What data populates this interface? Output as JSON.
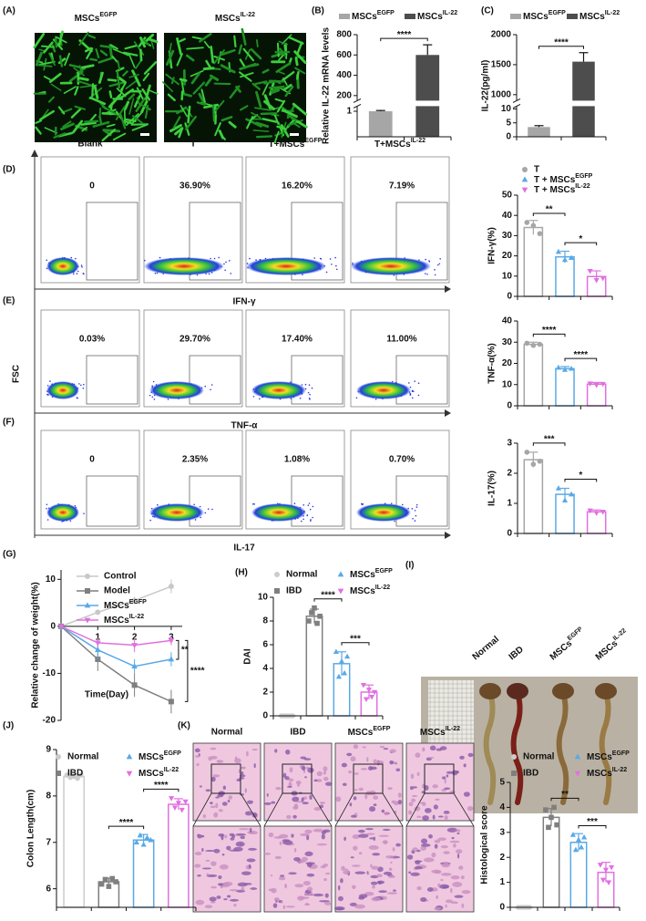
{
  "panel_labels": [
    "(A)",
    "(B)",
    "(C)",
    "(D)",
    "(E)",
    "(F)",
    "(G)",
    "(H)",
    "(I)",
    "(J)",
    "(K)"
  ],
  "panel_a": {
    "labels": [
      {
        "text": "MSCs",
        "sup": "EGFP"
      },
      {
        "text": "MSCs",
        "sup": "IL-22"
      }
    ]
  },
  "flow": {
    "y_label": "FSC",
    "columns": [
      "Blank",
      "T",
      {
        "text": "T+MSCs",
        "sup": "EGFP"
      },
      {
        "text": "T+MSCs",
        "sup": "IL-22"
      }
    ],
    "rows": [
      {
        "marker": "IFN-γ",
        "gates": [
          "0",
          "36.90%",
          "16.20%",
          "7.19%"
        ]
      },
      {
        "marker": "TNF-α",
        "gates": [
          "0.03%",
          "29.70%",
          "17.40%",
          "11.00%"
        ]
      },
      {
        "marker": "IL-17",
        "gates": [
          "0",
          "2.35%",
          "1.08%",
          "0.70%"
        ]
      }
    ]
  },
  "panel_i": {
    "labels": [
      "Normal",
      "IBD",
      {
        "text": "MSCs",
        "sup": "EGFP"
      },
      {
        "text": "MSCs",
        "sup": "IL-22"
      }
    ]
  },
  "panel_k_images": {
    "labels": [
      "Normal",
      "IBD",
      {
        "text": "MSCs",
        "sup": "EGFP"
      },
      {
        "text": "MSCs",
        "sup": "IL-22"
      }
    ]
  },
  "chart_data": [
    {
      "type": "bar",
      "y_label": "Relative IL-22 mRNA levels",
      "legend": true,
      "ylim": [
        0,
        800
      ],
      "ybreak": [
        1.2,
        150
      ],
      "yticks": [
        1,
        200,
        400,
        600,
        800
      ],
      "series": [
        {
          "name": {
            "text": "MSCs",
            "sup": "EGFP"
          },
          "color": "#a6a6a6",
          "values": [
            1
          ],
          "errors": [
            0.03
          ]
        },
        {
          "name": {
            "text": "MSCs",
            "sup": "IL-22"
          },
          "color": "#4d4d4d",
          "values": [
            600
          ],
          "errors": [
            100
          ]
        }
      ],
      "annotations": [
        {
          "text": "****",
          "span": [
            0,
            1
          ]
        }
      ]
    },
    {
      "type": "bar",
      "y_label": "IL-22(pg/ml)",
      "legend": true,
      "ylim": [
        0,
        2000
      ],
      "ybreak": [
        11,
        900
      ],
      "yticks": [
        0,
        5,
        10,
        1000,
        1500,
        2000
      ],
      "series": [
        {
          "name": {
            "text": "MSCs",
            "sup": "EGFP"
          },
          "color": "#a6a6a6",
          "values": [
            3.5
          ],
          "errors": [
            0.5
          ]
        },
        {
          "name": {
            "text": "MSCs",
            "sup": "IL-22"
          },
          "color": "#4d4d4d",
          "values": [
            1550
          ],
          "errors": [
            150
          ]
        }
      ],
      "annotations": [
        {
          "text": "****",
          "span": [
            0,
            1
          ]
        }
      ]
    },
    {
      "type": "bar",
      "bars": "outline",
      "y_label": "IFN-γ(%)",
      "legend": true,
      "ylim": [
        0,
        50
      ],
      "yticks": [
        0,
        10,
        20,
        30,
        40,
        50
      ],
      "series": [
        {
          "name": "T",
          "color": "#a6a6a6",
          "marker": "circle",
          "values": [
            34
          ],
          "errors": [
            3.5
          ],
          "points": [
            36.5,
            35,
            31
          ]
        },
        {
          "name": {
            "text": "T + MSCs",
            "sup": "EGFP"
          },
          "color": "#5aa9e6",
          "marker": "triangle",
          "values": [
            19.5
          ],
          "errors": [
            2.8
          ],
          "points": [
            22,
            18,
            19
          ]
        },
        {
          "name": {
            "text": "T + MSCs",
            "sup": "IL-22"
          },
          "color": "#e070e0",
          "marker": "triangle-down",
          "values": [
            9.8
          ],
          "errors": [
            2.8
          ],
          "points": [
            12.5,
            8,
            9
          ]
        }
      ],
      "annotations": [
        {
          "text": "**",
          "span": [
            0,
            1
          ]
        },
        {
          "text": "*",
          "span": [
            1,
            2
          ]
        }
      ]
    },
    {
      "type": "bar",
      "bars": "outline",
      "y_label": "TNF-α(%)",
      "ylim": [
        0,
        40
      ],
      "yticks": [
        0,
        10,
        20,
        30,
        40
      ],
      "series": [
        {
          "color": "#a6a6a6",
          "marker": "circle",
          "values": [
            29
          ],
          "errors": [
            1
          ],
          "points": [
            29.5,
            28.5,
            29
          ]
        },
        {
          "color": "#5aa9e6",
          "marker": "triangle",
          "values": [
            17.5
          ],
          "errors": [
            1
          ],
          "points": [
            18,
            17,
            17.5
          ]
        },
        {
          "color": "#e070e0",
          "marker": "triangle-down",
          "values": [
            10.2
          ],
          "errors": [
            0.8
          ],
          "points": [
            10.5,
            9.8,
            10.3
          ]
        }
      ],
      "annotations": [
        {
          "text": "****",
          "span": [
            0,
            1
          ]
        },
        {
          "text": "****",
          "span": [
            1,
            2
          ]
        }
      ]
    },
    {
      "type": "bar",
      "bars": "outline",
      "y_label": "IL-17(%)",
      "ylim": [
        0,
        3
      ],
      "yticks": [
        0,
        1,
        2,
        3
      ],
      "series": [
        {
          "color": "#a6a6a6",
          "marker": "circle",
          "values": [
            2.45
          ],
          "errors": [
            0.25
          ],
          "points": [
            2.7,
            2.3,
            2.4
          ]
        },
        {
          "color": "#5aa9e6",
          "marker": "triangle",
          "values": [
            1.3
          ],
          "errors": [
            0.2
          ],
          "points": [
            1.5,
            1.1,
            1.3
          ]
        },
        {
          "color": "#e070e0",
          "marker": "triangle-down",
          "values": [
            0.72
          ],
          "errors": [
            0.06
          ],
          "points": [
            0.76,
            0.68,
            0.72
          ]
        }
      ],
      "annotations": [
        {
          "text": "***",
          "span": [
            0,
            1
          ]
        },
        {
          "text": "*",
          "span": [
            1,
            2
          ]
        }
      ]
    },
    {
      "type": "line",
      "x_label": "Time(Day)",
      "y_label": "Relative change of weight(%)",
      "legend": true,
      "x": [
        0,
        1,
        2,
        3
      ],
      "xlim": [
        0,
        3.3
      ],
      "xticks": [
        1,
        2,
        3
      ],
      "ylim": [
        -20,
        12
      ],
      "yticks": [
        -20,
        -10,
        0,
        10
      ],
      "series": [
        {
          "name": "Control",
          "color": "#c8c8c8",
          "marker": "circle",
          "values": [
            0,
            3,
            5.5,
            8.5
          ],
          "errors": [
            0,
            0.5,
            0.8,
            1.5
          ]
        },
        {
          "name": "Model",
          "color": "#7f7f7f",
          "marker": "square",
          "values": [
            0,
            -7,
            -12.5,
            -16
          ],
          "errors": [
            0,
            2.5,
            2.5,
            2.5
          ]
        },
        {
          "name": {
            "text": "MSCs",
            "sup": "EGFP"
          },
          "color": "#5aa9e6",
          "marker": "triangle",
          "values": [
            0,
            -5,
            -8.5,
            -7
          ],
          "errors": [
            0,
            2,
            1.5,
            1.5
          ]
        },
        {
          "name": {
            "text": "MSCs",
            "sup": "IL-22"
          },
          "color": "#e070e0",
          "marker": "triangle-down",
          "values": [
            0,
            -3.5,
            -4,
            -3
          ],
          "errors": [
            0,
            1,
            1.5,
            1
          ]
        }
      ],
      "annotations": [
        {
          "text": "**",
          "series": [
            3,
            2
          ]
        },
        {
          "text": "****",
          "series": [
            3,
            1
          ]
        }
      ]
    },
    {
      "type": "bar",
      "bars": "outline",
      "y_label": "DAI",
      "legend": true,
      "ylim": [
        0,
        10
      ],
      "yticks": [
        0,
        2,
        4,
        6,
        8,
        10
      ],
      "series": [
        {
          "name": "Normal",
          "color": "#cccccc",
          "marker": "circle",
          "values": [
            0
          ],
          "errors": [
            0.05
          ],
          "points": [
            0,
            0,
            0,
            0,
            0
          ]
        },
        {
          "name": "IBD",
          "color": "#7f7f7f",
          "marker": "square",
          "values": [
            8.4
          ],
          "errors": [
            0.6
          ],
          "points": [
            8,
            8.7,
            9.1,
            7.8,
            8.4
          ]
        },
        {
          "name": {
            "text": "MSCs",
            "sup": "EGFP"
          },
          "color": "#5aa9e6",
          "marker": "triangle",
          "values": [
            4.4
          ],
          "errors": [
            1
          ],
          "points": [
            5.4,
            3.3,
            4.6,
            3.6,
            5
          ]
        },
        {
          "name": {
            "text": "MSCs",
            "sup": "IL-22"
          },
          "color": "#e070e0",
          "marker": "triangle-down",
          "values": [
            2
          ],
          "errors": [
            0.6
          ],
          "points": [
            2.6,
            1.4,
            2.2,
            1.6,
            2
          ]
        }
      ],
      "annotations": [
        {
          "text": "****",
          "span": [
            1,
            2
          ]
        },
        {
          "text": "***",
          "span": [
            2,
            3
          ]
        }
      ]
    },
    {
      "type": "bar",
      "bars": "outline",
      "y_label": "Colon Length(cm)",
      "legend": true,
      "ylim": [
        5.6,
        9
      ],
      "yticks": [
        6,
        7,
        8,
        9
      ],
      "series": [
        {
          "name": "Normal",
          "color": "#cccccc",
          "marker": "circle",
          "values": [
            8.42
          ],
          "errors": [
            0.05
          ],
          "points": [
            8.45,
            8.4,
            8.42,
            8.38,
            8.45
          ]
        },
        {
          "name": "IBD",
          "color": "#7f7f7f",
          "marker": "square",
          "values": [
            6.15
          ],
          "errors": [
            0.08
          ],
          "points": [
            6.1,
            6.2,
            6.05,
            6.22,
            6.15
          ]
        },
        {
          "name": {
            "text": "MSCs",
            "sup": "EGFP"
          },
          "color": "#5aa9e6",
          "marker": "triangle",
          "values": [
            7.05
          ],
          "errors": [
            0.12
          ],
          "points": [
            7,
            7.15,
            6.95,
            7.1,
            7.05
          ]
        },
        {
          "name": {
            "text": "MSCs",
            "sup": "IL-22"
          },
          "color": "#e070e0",
          "marker": "triangle-down",
          "values": [
            7.82
          ],
          "errors": [
            0.12
          ],
          "points": [
            7.95,
            7.75,
            7.85,
            7.7,
            7.88
          ]
        }
      ],
      "annotations": [
        {
          "text": "****",
          "span": [
            1,
            2
          ]
        },
        {
          "text": "****",
          "span": [
            2,
            3
          ]
        }
      ]
    },
    {
      "type": "bar",
      "bars": "outline",
      "y_label": "Histological score",
      "legend": true,
      "ylim": [
        0,
        5
      ],
      "yticks": [
        0,
        1,
        2,
        3,
        4,
        5
      ],
      "series": [
        {
          "name": "Normal",
          "color": "#cccccc",
          "marker": "circle",
          "values": [
            0
          ],
          "errors": [
            0.05
          ],
          "points": [
            0,
            0,
            0,
            0,
            0
          ]
        },
        {
          "name": "IBD",
          "color": "#7f7f7f",
          "marker": "square",
          "values": [
            3.6
          ],
          "errors": [
            0.35
          ],
          "points": [
            3.9,
            3.2,
            3.6,
            4,
            3.3
          ]
        },
        {
          "name": {
            "text": "MSCs",
            "sup": "EGFP"
          },
          "color": "#5aa9e6",
          "marker": "triangle",
          "values": [
            2.6
          ],
          "errors": [
            0.35
          ],
          "points": [
            2.9,
            2.3,
            2.7,
            2.4,
            2.8
          ]
        },
        {
          "name": {
            "text": "MSCs",
            "sup": "IL-22"
          },
          "color": "#e070e0",
          "marker": "triangle-down",
          "values": [
            1.4
          ],
          "errors": [
            0.4
          ],
          "points": [
            1.7,
            1.1,
            1.5,
            1,
            1.6
          ]
        }
      ],
      "annotations": [
        {
          "text": "**",
          "span": [
            1,
            2
          ]
        },
        {
          "text": "***",
          "span": [
            2,
            3
          ]
        }
      ]
    }
  ]
}
